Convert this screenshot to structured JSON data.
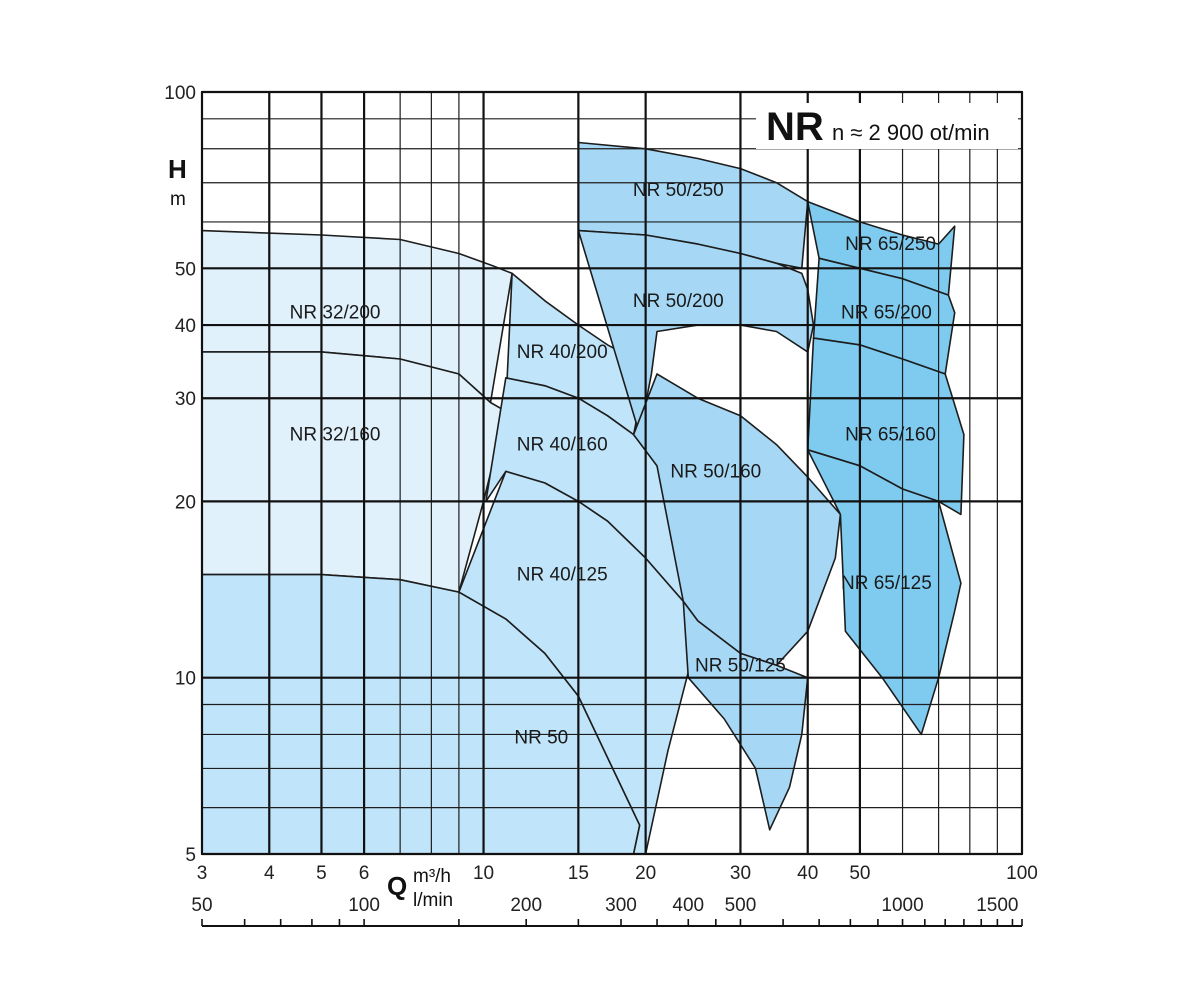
{
  "chart_data": {
    "type": "area",
    "title": "NR",
    "subtitle": "n ≈ 2 900 ot/min",
    "y_axis": {
      "symbol": "H",
      "unit": "m",
      "scale": "log",
      "range": [
        5,
        100
      ],
      "tick_labels": [
        "5",
        "10",
        "20",
        "30",
        "40",
        "50",
        "100"
      ]
    },
    "x_axis": {
      "symbol": "Q",
      "unit": "m³/h",
      "scale": "log",
      "range": [
        3,
        100
      ],
      "tick_labels": [
        "3",
        "4",
        "5",
        "6",
        "10",
        "15",
        "20",
        "30",
        "40",
        "50",
        "100"
      ]
    },
    "x2_axis": {
      "unit": "l/min",
      "scale": "log",
      "tick_labels": [
        "50",
        "100",
        "200",
        "300",
        "400",
        "500",
        "1000",
        "1500"
      ]
    },
    "grid": true,
    "highlight_color": "#e0353a",
    "series": [
      {
        "name": "NR 32/200",
        "fill": "#e1f1fc",
        "points": [
          [
            3,
            58
          ],
          [
            5,
            57
          ],
          [
            7,
            56
          ],
          [
            9,
            53
          ],
          [
            10.4,
            50.5
          ],
          [
            11.3,
            49
          ],
          [
            10.3,
            29.5
          ],
          [
            9,
            33
          ],
          [
            7,
            35
          ],
          [
            5,
            36
          ],
          [
            3,
            36
          ]
        ]
      },
      {
        "name": "NR 32/160",
        "fill": "#e1f1fc",
        "points": [
          [
            3,
            36
          ],
          [
            5,
            36
          ],
          [
            7,
            35
          ],
          [
            9,
            33
          ],
          [
            10.3,
            29.5
          ],
          [
            11,
            28.5
          ],
          [
            10,
            20
          ],
          [
            9,
            14
          ],
          [
            7,
            14.7
          ],
          [
            5,
            15
          ],
          [
            3,
            15
          ]
        ]
      },
      {
        "name": "NR 50",
        "fill": "#c0e4f9",
        "points": [
          [
            3,
            15
          ],
          [
            5,
            15
          ],
          [
            7,
            14.7
          ],
          [
            9,
            14
          ],
          [
            11,
            12.6
          ],
          [
            13,
            11
          ],
          [
            15,
            9.3
          ],
          [
            17,
            7.3
          ],
          [
            19.5,
            5.6
          ],
          [
            19,
            5
          ],
          [
            3,
            5
          ]
        ]
      },
      {
        "name": "NR 40/200",
        "fill": "#c0e4f9",
        "points": [
          [
            11.3,
            49
          ],
          [
            13,
            44
          ],
          [
            15,
            40
          ],
          [
            17,
            37
          ],
          [
            19.6,
            34.5
          ],
          [
            20,
            33
          ],
          [
            19,
            26
          ],
          [
            17,
            28
          ],
          [
            15,
            30
          ],
          [
            13,
            31.5
          ],
          [
            11,
            32.5
          ],
          [
            11,
            29
          ]
        ]
      },
      {
        "name": "NR 40/160",
        "fill": "#c0e4f9",
        "points": [
          [
            11,
            32.5
          ],
          [
            13,
            31.5
          ],
          [
            15,
            30
          ],
          [
            17,
            28
          ],
          [
            19,
            26
          ],
          [
            21,
            23
          ],
          [
            24,
            18.5
          ],
          [
            23.5,
            13.5
          ],
          [
            20,
            16
          ],
          [
            17,
            18.5
          ],
          [
            15,
            20
          ],
          [
            13,
            21.5
          ],
          [
            11,
            22.5
          ],
          [
            10.1,
            20
          ]
        ]
      },
      {
        "name": "NR 40/125",
        "fill": "#c0e4f9",
        "points": [
          [
            11,
            22.5
          ],
          [
            13,
            21.5
          ],
          [
            15,
            20
          ],
          [
            17,
            18.5
          ],
          [
            20,
            16
          ],
          [
            23.5,
            13.5
          ],
          [
            25,
            13
          ],
          [
            24.5,
            11
          ],
          [
            22,
            7.5
          ],
          [
            20,
            5
          ],
          [
            19,
            5
          ],
          [
            19.5,
            5.6
          ],
          [
            17,
            7.3
          ],
          [
            15,
            9.3
          ],
          [
            13,
            11
          ],
          [
            11,
            12.6
          ],
          [
            9,
            14
          ]
        ]
      },
      {
        "name": "NR 50/250",
        "fill": "#a6d8f5",
        "points": [
          [
            15,
            82
          ],
          [
            20,
            80
          ],
          [
            25,
            77
          ],
          [
            30,
            74
          ],
          [
            35,
            70
          ],
          [
            40,
            65
          ],
          [
            39,
            50
          ],
          [
            35,
            51
          ],
          [
            30,
            53
          ],
          [
            25,
            55
          ],
          [
            20,
            57
          ],
          [
            15,
            58
          ]
        ]
      },
      {
        "name": "NR 50/200",
        "fill": "#a6d8f5",
        "points": [
          [
            15,
            58
          ],
          [
            20,
            57
          ],
          [
            25,
            55
          ],
          [
            30,
            53
          ],
          [
            35,
            51
          ],
          [
            39,
            49
          ],
          [
            40,
            46
          ],
          [
            41,
            40
          ],
          [
            40,
            36
          ],
          [
            35,
            39
          ],
          [
            30,
            40
          ],
          [
            25,
            40
          ],
          [
            21,
            39
          ],
          [
            20.5,
            33
          ],
          [
            19.5,
            26
          ]
        ]
      },
      {
        "name": "NR 50/160",
        "fill": "#a6d8f5",
        "points": [
          [
            21,
            33
          ],
          [
            25,
            30
          ],
          [
            30,
            28
          ],
          [
            35,
            25
          ],
          [
            40,
            22
          ],
          [
            46,
            19
          ],
          [
            45,
            16
          ],
          [
            40,
            12
          ],
          [
            35,
            10.5
          ],
          [
            30,
            11
          ],
          [
            25,
            12.5
          ],
          [
            23.5,
            13.5
          ],
          [
            21,
            23
          ],
          [
            19,
            26
          ]
        ]
      },
      {
        "name": "NR 50/125",
        "fill": "#a6d8f5",
        "points": [
          [
            23.5,
            13.5
          ],
          [
            25,
            12.5
          ],
          [
            30,
            11
          ],
          [
            35,
            10.5
          ],
          [
            40,
            10
          ],
          [
            39,
            8
          ],
          [
            37,
            6.5
          ],
          [
            34,
            5.5
          ],
          [
            32,
            7
          ],
          [
            28,
            8.5
          ],
          [
            24,
            10
          ]
        ]
      },
      {
        "name": "NR 65/250",
        "fill": "#7fcbf0",
        "points": [
          [
            40,
            65
          ],
          [
            50,
            60
          ],
          [
            60,
            57
          ],
          [
            70,
            55
          ],
          [
            75,
            59
          ],
          [
            73,
            45
          ],
          [
            60,
            48
          ],
          [
            50,
            50
          ],
          [
            42,
            52
          ]
        ]
      },
      {
        "name": "NR 65/200",
        "fill": "#7fcbf0",
        "points": [
          [
            42,
            52
          ],
          [
            50,
            50
          ],
          [
            60,
            48
          ],
          [
            73,
            45
          ],
          [
            75,
            42
          ],
          [
            72,
            33
          ],
          [
            60,
            35
          ],
          [
            50,
            37
          ],
          [
            41,
            38
          ]
        ]
      },
      {
        "name": "NR 65/160",
        "fill": "#7fcbf0",
        "points": [
          [
            41,
            38
          ],
          [
            50,
            37
          ],
          [
            60,
            35
          ],
          [
            72,
            33
          ],
          [
            78,
            26
          ],
          [
            77,
            19
          ],
          [
            70,
            20
          ],
          [
            60,
            21
          ],
          [
            50,
            23
          ],
          [
            40,
            24.5
          ]
        ]
      },
      {
        "name": "NR 65/125",
        "fill": "#7fcbf0",
        "points": [
          [
            40,
            24.5
          ],
          [
            50,
            23
          ],
          [
            60,
            21
          ],
          [
            70,
            20
          ],
          [
            77,
            14.5
          ],
          [
            75,
            13
          ],
          [
            70,
            10
          ],
          [
            65,
            8
          ],
          [
            55,
            10
          ],
          [
            47,
            12
          ],
          [
            46,
            19
          ]
        ]
      }
    ]
  }
}
